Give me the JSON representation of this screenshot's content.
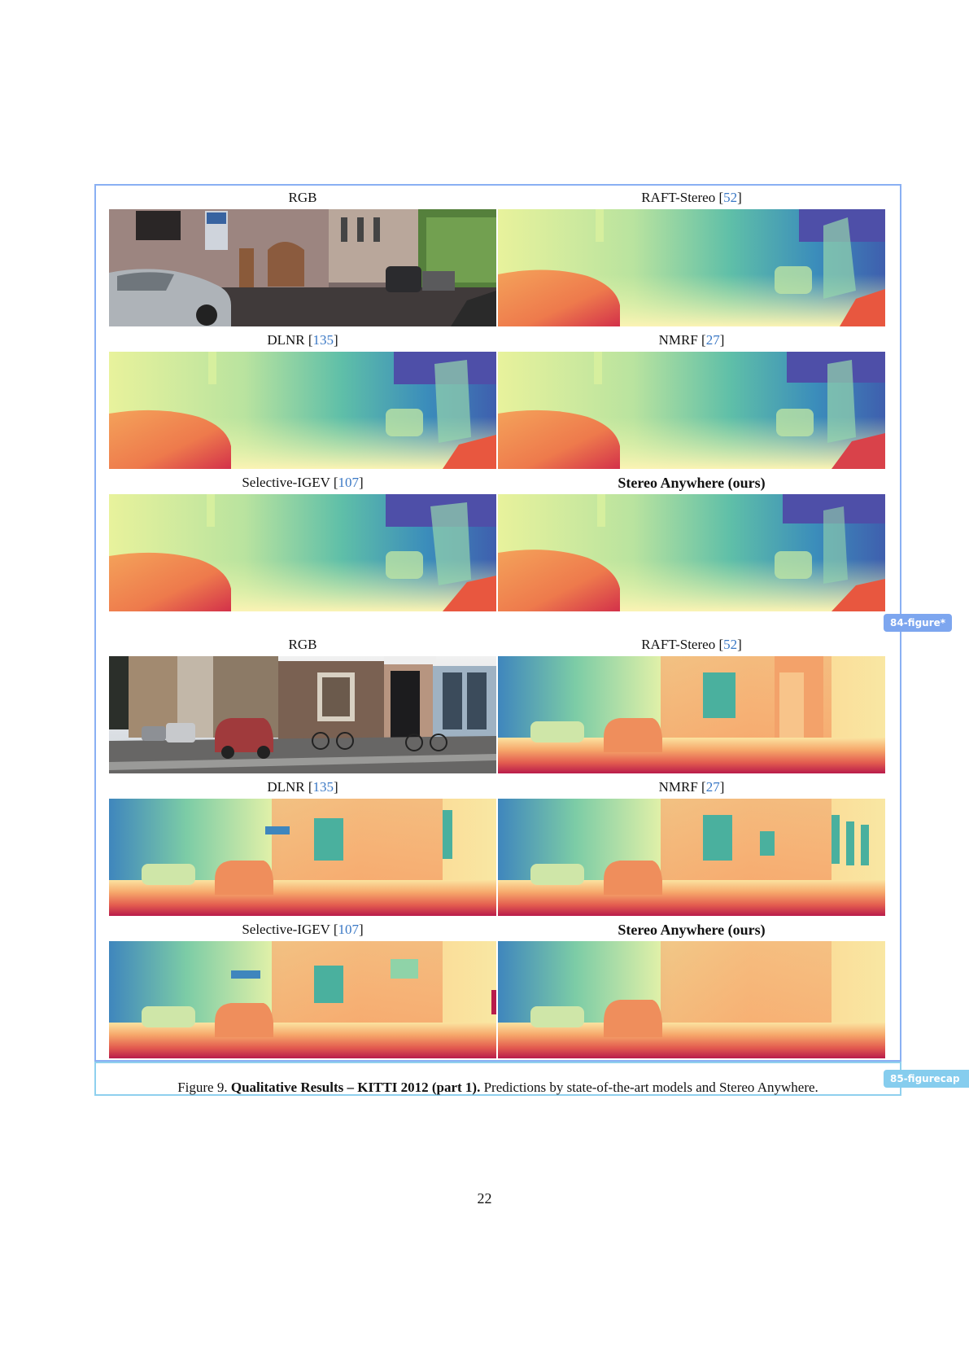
{
  "figure_tag": "84-figure*",
  "caption_tag": "85-figurecap",
  "caption": {
    "prefix": "Figure 9.",
    "title": "Qualitative Results – KITTI 2012 (part 1).",
    "text": "Predictions by state-of-the-art models and Stereo Anywhere."
  },
  "page_number": "22",
  "scene1": {
    "rgb": {
      "name": "RGB",
      "ref": ""
    },
    "raft": {
      "name": "RAFT-Stereo [",
      "ref": "52",
      "close": "]"
    },
    "dlnr": {
      "name": "DLNR [",
      "ref": "135",
      "close": "]"
    },
    "nmrf": {
      "name": "NMRF [",
      "ref": "27",
      "close": "]"
    },
    "sigev": {
      "name": "Selective-IGEV [",
      "ref": "107",
      "close": "]"
    },
    "ours": {
      "name": "Stereo Anywhere (ours)"
    }
  },
  "scene2": {
    "rgb": {
      "name": "RGB",
      "ref": ""
    },
    "raft": {
      "name": "RAFT-Stereo [",
      "ref": "52",
      "close": "]"
    },
    "dlnr": {
      "name": "DLNR [",
      "ref": "135",
      "close": "]"
    },
    "nmrf": {
      "name": "NMRF [",
      "ref": "27",
      "close": "]"
    },
    "sigev": {
      "name": "Selective-IGEV [",
      "ref": "107",
      "close": "]"
    },
    "ours": {
      "name": "Stereo Anywhere (ours)"
    }
  },
  "colors": {
    "figure_border": "#8ab0f3",
    "caption_border": "#8fd0ee",
    "reference_link": "#3a78c5"
  }
}
